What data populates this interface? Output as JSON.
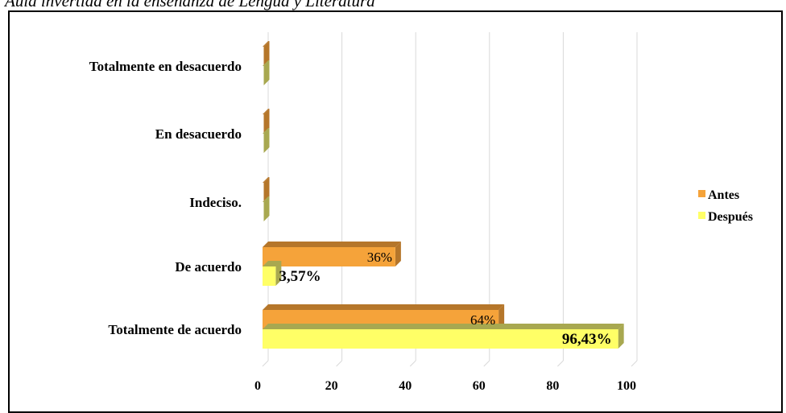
{
  "caption": "Aula invertida en la enseñanza de Lengua y Literatura",
  "chart_data": {
    "type": "bar",
    "orientation": "horizontal",
    "style": "3d",
    "categories": [
      "Totalmente en desacuerdo",
      "En desacuerdo",
      "Indeciso.",
      "De acuerdo",
      "Totalmente de acuerdo"
    ],
    "series": [
      {
        "name": "Antes",
        "values": [
          0,
          0,
          0,
          36,
          64
        ],
        "labels": [
          "",
          "",
          "",
          "36%",
          "64%"
        ],
        "color": "#F5A33A",
        "side_color": "#B5762A"
      },
      {
        "name": "Después",
        "values": [
          0,
          0,
          0,
          3.57,
          96.43
        ],
        "labels": [
          "",
          "",
          "",
          "3,57%",
          "96,43%"
        ],
        "color": "#FFFF66",
        "side_color": "#A8A850"
      }
    ],
    "x_ticks": [
      "0",
      "20",
      "40",
      "60",
      "80",
      "100"
    ],
    "xlim": [
      0,
      100
    ],
    "grid": true,
    "legend": "right"
  }
}
